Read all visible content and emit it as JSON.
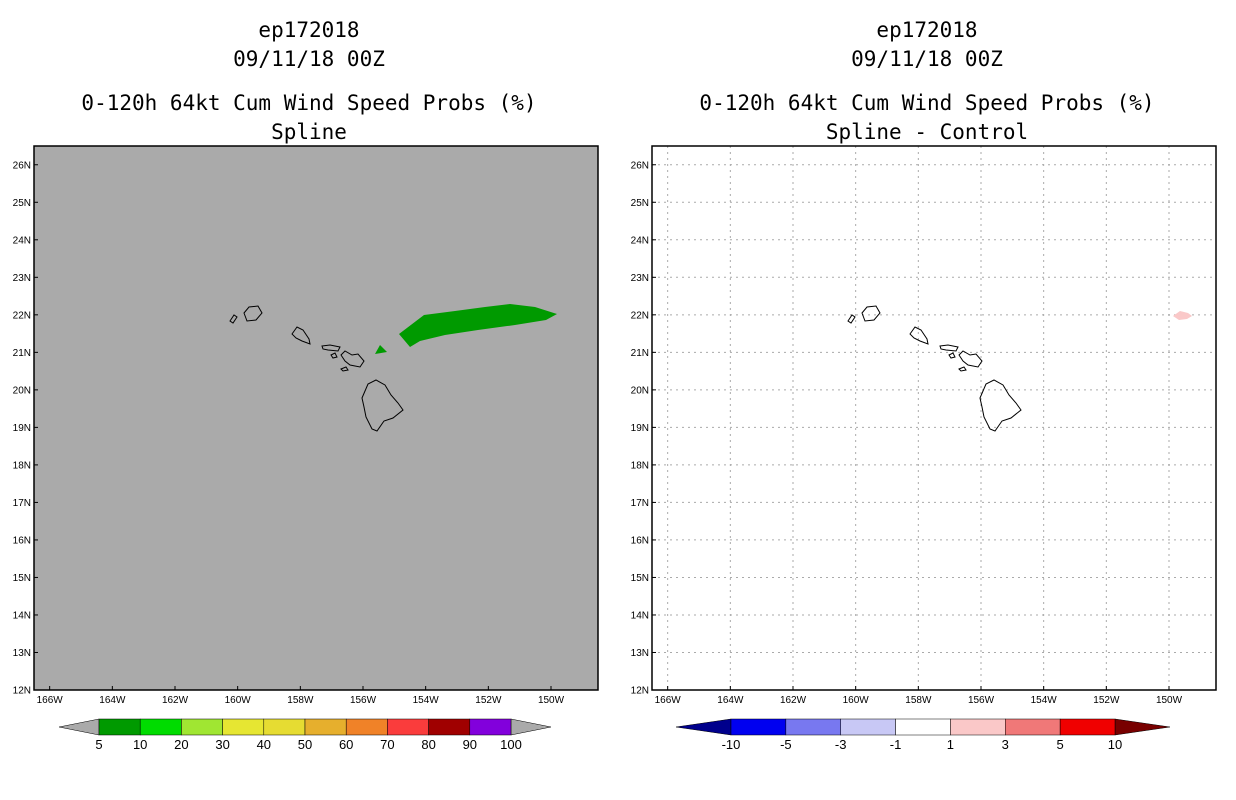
{
  "panels": [
    {
      "id": "left",
      "storm_id": "ep172018",
      "datetime": "09/11/18 00Z",
      "product": "0-120h 64kt Cum Wind Speed Probs (%)",
      "subtitle": "Spline",
      "background": "#aaaaaa",
      "grid": false,
      "colorbar": {
        "labels": [
          "5",
          "10",
          "20",
          "30",
          "40",
          "50",
          "60",
          "70",
          "80",
          "90",
          "100"
        ],
        "colors": [
          "#009a00",
          "#00dc00",
          "#a0e632",
          "#e6e632",
          "#e6dc32",
          "#e6af2d",
          "#f08228",
          "#fa3c3c",
          "#a00000",
          "#8200dc"
        ],
        "under_color": "#aaaaaa",
        "over_color": "#aaaaaa"
      }
    },
    {
      "id": "right",
      "storm_id": "ep172018",
      "datetime": "09/11/18 00Z",
      "product": "0-120h 64kt Cum Wind Speed Probs (%)",
      "subtitle": "Spline - Control",
      "background": "#ffffff",
      "grid": true,
      "colorbar": {
        "labels": [
          "-10",
          "-5",
          "-3",
          "-1",
          "1",
          "3",
          "5",
          "10"
        ],
        "colors": [
          "#0000f0",
          "#7878f0",
          "#c8c8f5",
          "#ffffff",
          "#fac8c8",
          "#f07878",
          "#f00000"
        ],
        "under_color": "#00008c",
        "over_color": "#780000"
      }
    }
  ],
  "map": {
    "lat_labels": [
      "26N",
      "25N",
      "24N",
      "23N",
      "22N",
      "21N",
      "20N",
      "19N",
      "18N",
      "17N",
      "16N",
      "15N",
      "14N",
      "13N",
      "12N"
    ],
    "lon_labels": [
      "166W",
      "164W",
      "162W",
      "160W",
      "158W",
      "156W",
      "154W",
      "152W",
      "150W"
    ],
    "lat_range": [
      12,
      26.5
    ],
    "lon_range": [
      -166.5,
      -148.5
    ]
  }
}
